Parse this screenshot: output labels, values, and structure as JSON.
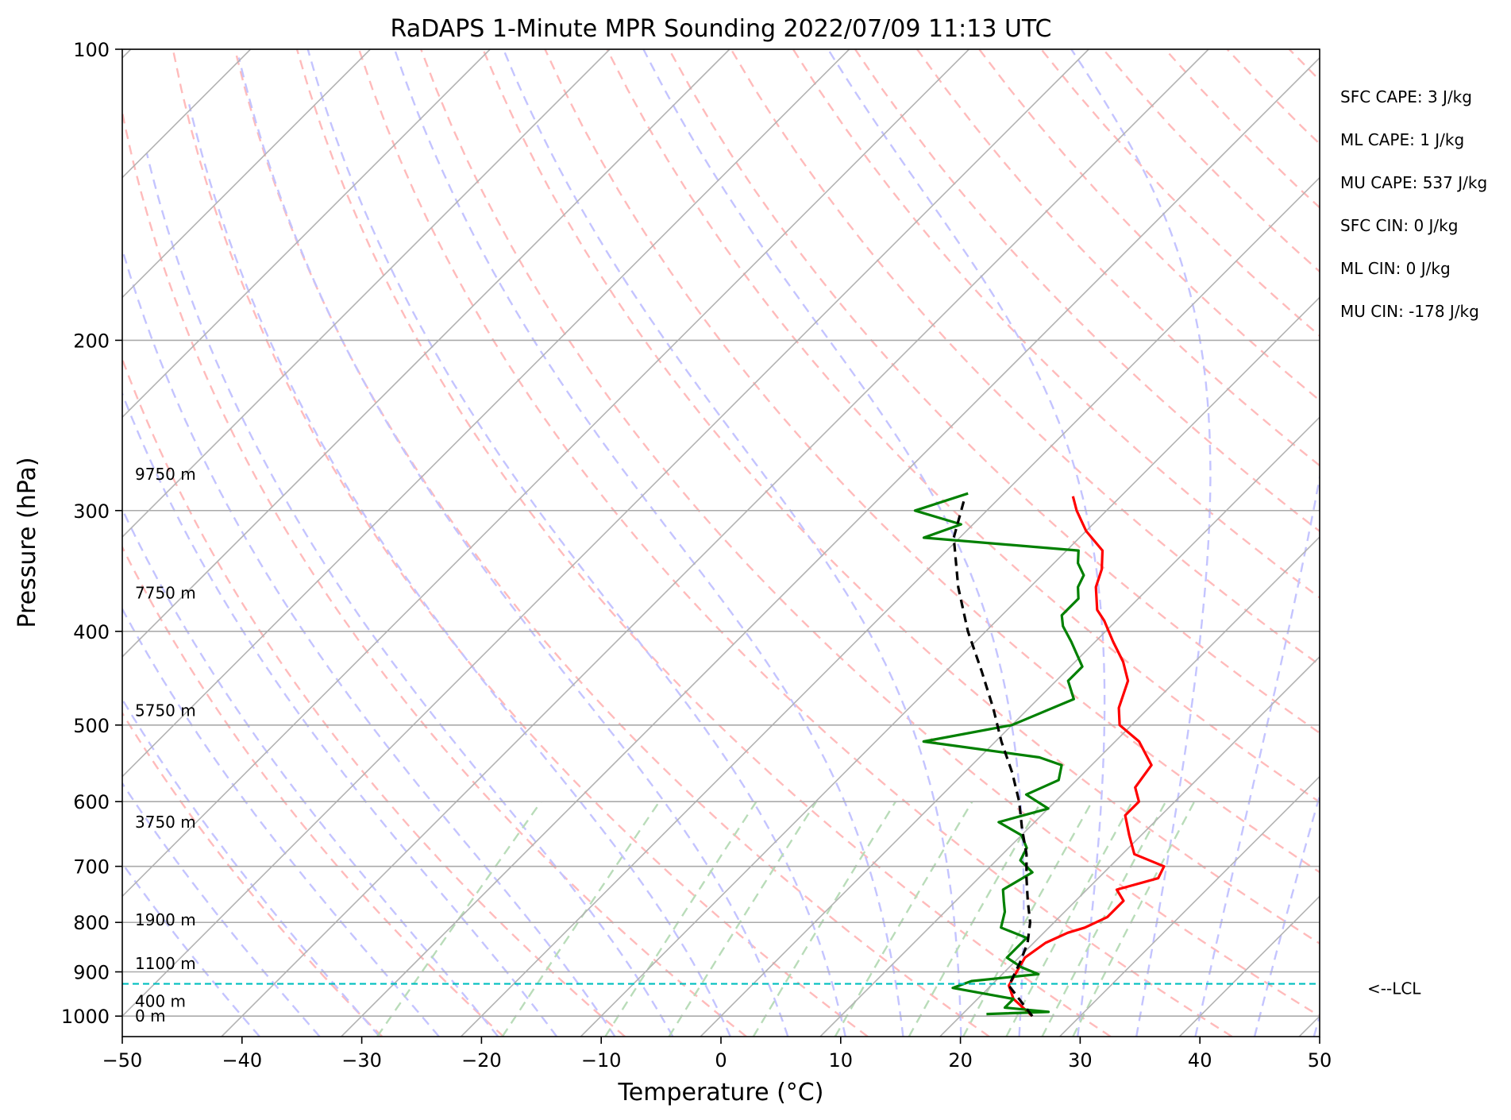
{
  "chart_data": {
    "type": "line",
    "title": "RaDAPS 1-Minute MPR Sounding 2022/07/09 11:13 UTC",
    "xlabel": "Temperature (°C)",
    "ylabel": "Pressure (hPa)",
    "xlim": [
      -50,
      50
    ],
    "ylim": [
      1050,
      100
    ],
    "y_scale": "log",
    "x_ticks": [
      -50,
      -40,
      -30,
      -20,
      -10,
      0,
      10,
      20,
      30,
      40,
      50
    ],
    "x_tick_labels": [
      "−50",
      "−40",
      "−30",
      "−20",
      "−10",
      "0",
      "10",
      "20",
      "30",
      "40",
      "50"
    ],
    "y_ticks": [
      100,
      200,
      300,
      400,
      500,
      600,
      700,
      800,
      900,
      1000
    ],
    "y_tick_labels": [
      "100",
      "200",
      "300",
      "400",
      "500",
      "600",
      "700",
      "800",
      "900",
      "1000"
    ],
    "grid": true,
    "skew": "skew-T log-P",
    "series": [
      {
        "color": "#ff0000",
        "points": [
          [
            26,
            1000
          ],
          [
            23,
            960
          ],
          [
            21.5,
            930
          ],
          [
            21,
            900
          ],
          [
            20.5,
            870
          ],
          [
            21,
            840
          ],
          [
            22,
            820
          ],
          [
            23,
            810
          ],
          [
            24,
            790
          ],
          [
            24,
            760
          ],
          [
            22.5,
            740
          ],
          [
            25,
            720
          ],
          [
            24.5,
            700
          ],
          [
            21,
            680
          ],
          [
            19,
            650
          ],
          [
            17,
            620
          ],
          [
            17,
            600
          ],
          [
            15.5,
            580
          ],
          [
            15,
            550
          ],
          [
            12,
            520
          ],
          [
            9,
            500
          ],
          [
            7.5,
            480
          ],
          [
            6,
            450
          ],
          [
            4,
            430
          ],
          [
            1.5,
            410
          ],
          [
            -1,
            390
          ],
          [
            -2.5,
            380
          ],
          [
            -4.5,
            360
          ],
          [
            -5.5,
            345
          ],
          [
            -7,
            330
          ],
          [
            -10,
            315
          ],
          [
            -12.5,
            300
          ],
          [
            -14,
            290
          ]
        ]
      },
      {
        "color": "#008000",
        "points": [
          [
            22,
            995
          ],
          [
            27,
            990
          ],
          [
            23,
            980
          ],
          [
            23,
            960
          ],
          [
            17,
            935
          ],
          [
            18,
            920
          ],
          [
            23,
            905
          ],
          [
            21,
            890
          ],
          [
            19,
            870
          ],
          [
            19,
            850
          ],
          [
            19,
            830
          ],
          [
            16,
            810
          ],
          [
            15,
            780
          ],
          [
            14,
            760
          ],
          [
            13,
            740
          ],
          [
            14,
            710
          ],
          [
            12,
            690
          ],
          [
            11.5,
            670
          ],
          [
            10,
            650
          ],
          [
            7,
            630
          ],
          [
            10,
            610
          ],
          [
            7,
            590
          ],
          [
            8.5,
            570
          ],
          [
            7.5,
            550
          ],
          [
            5,
            540
          ],
          [
            -6,
            520
          ],
          [
            0,
            500
          ],
          [
            3,
            470
          ],
          [
            1,
            450
          ],
          [
            1,
            435
          ],
          [
            -2,
            410
          ],
          [
            -4,
            395
          ],
          [
            -5,
            385
          ],
          [
            -5,
            370
          ],
          [
            -6,
            360
          ],
          [
            -6.5,
            350
          ],
          [
            -8,
            340
          ],
          [
            -9,
            330
          ],
          [
            -23,
            320
          ],
          [
            -21,
            310
          ],
          [
            -26,
            300
          ],
          [
            -23,
            288
          ]
        ]
      },
      {
        "color": "#000000",
        "dashed": true,
        "points": [
          [
            26,
            1000
          ],
          [
            21.5,
            930
          ],
          [
            20.5,
            880
          ],
          [
            19.5,
            840
          ],
          [
            18,
            800
          ],
          [
            16,
            760
          ],
          [
            14,
            720
          ],
          [
            12,
            680
          ],
          [
            9.5,
            640
          ],
          [
            7,
            600
          ],
          [
            4,
            560
          ],
          [
            0.5,
            520
          ],
          [
            -3,
            480
          ],
          [
            -7,
            440
          ],
          [
            -11.5,
            400
          ],
          [
            -16,
            360
          ],
          [
            -20.5,
            320
          ],
          [
            -23,
            290
          ]
        ]
      }
    ],
    "height_labels": [
      {
        "text": "9750 m",
        "p": 275
      },
      {
        "text": "7750 m",
        "p": 365
      },
      {
        "text": "5750 m",
        "p": 483
      },
      {
        "text": "3750 m",
        "p": 630
      },
      {
        "text": "1900 m",
        "p": 795
      },
      {
        "text": "1100 m",
        "p": 882
      },
      {
        "text": "400 m",
        "p": 965
      },
      {
        "text": "0 m",
        "p": 1000
      }
    ],
    "lcl": {
      "p": 926,
      "label": "<--LCL",
      "color": "#00bfbf"
    },
    "annotations": [
      "SFC CAPE: 3 J/kg",
      "ML CAPE: 1 J/kg",
      "MU CAPE: 537 J/kg",
      "SFC CIN: 0 J/kg",
      "ML CIN: 0 J/kg",
      "MU CIN: -178 J/kg"
    ],
    "background_lines": {
      "isotherm_color": "#b3b3b3",
      "dry_adiabat_color": "#ffbbbb",
      "moist_adiabat_color": "#c4c4ff",
      "mixing_ratio_color": "#b9dcb9"
    }
  }
}
